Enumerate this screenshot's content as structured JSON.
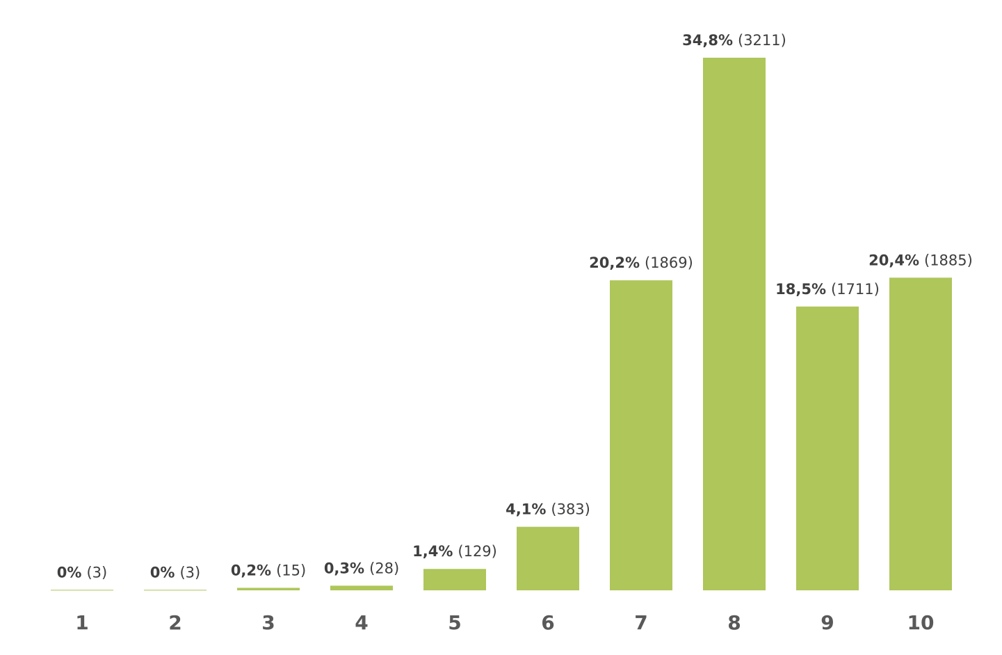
{
  "chart_data": {
    "type": "bar",
    "categories": [
      "1",
      "2",
      "3",
      "4",
      "5",
      "6",
      "7",
      "8",
      "9",
      "10"
    ],
    "values": [
      3,
      3,
      15,
      28,
      129,
      383,
      1869,
      3211,
      1711,
      1885
    ],
    "value_labels": [
      "(3)",
      "(3)",
      "(15)",
      "(28)",
      "(129)",
      "(383)",
      "(1869)",
      "(3211)",
      "(1711)",
      "(1885)"
    ],
    "share_labels": [
      "0%",
      "0%",
      "0,2%",
      "0,3%",
      "1,4%",
      "4,1%",
      "20,2%",
      "34,8%",
      "18,5%",
      "20,4%"
    ],
    "color": "#aec65a"
  }
}
